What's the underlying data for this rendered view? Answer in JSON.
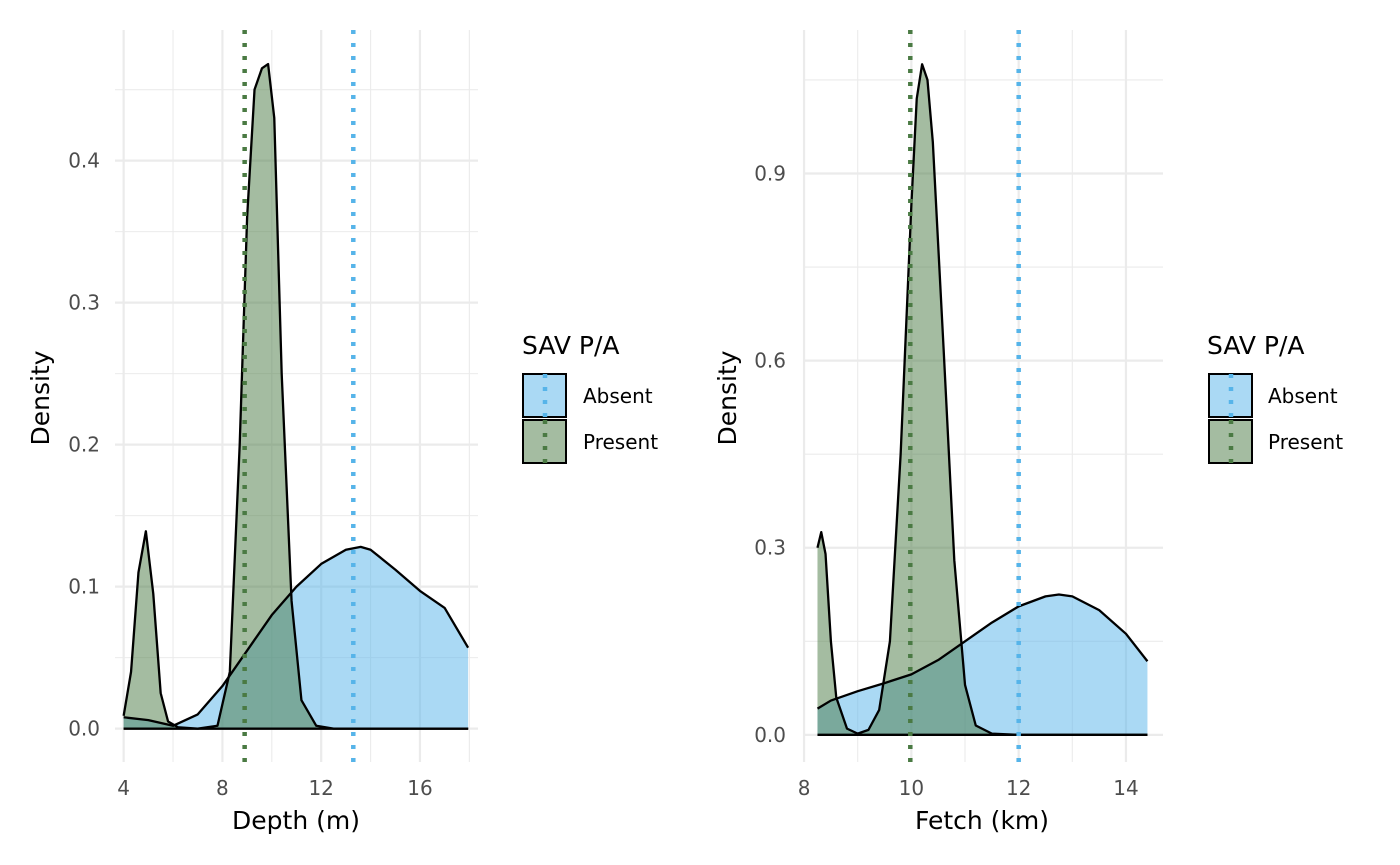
{
  "colors": {
    "absent": "#56B4E9",
    "present": "#4A7A43"
  },
  "chart_data": [
    {
      "type": "density",
      "xlabel": "Depth (m)",
      "ylabel": "Density",
      "xlim": [
        3.65,
        18.35
      ],
      "ylim": [
        -0.0235,
        0.492
      ],
      "xticks": [
        4,
        8,
        12,
        16
      ],
      "xtick_labels": [
        "4",
        "8",
        "12",
        "16"
      ],
      "xminor": [
        6,
        10,
        14,
        18
      ],
      "yticks": [
        0.0,
        0.1,
        0.2,
        0.3,
        0.4
      ],
      "ytick_labels": [
        "0.0",
        "0.1",
        "0.2",
        "0.3",
        "0.4"
      ],
      "yminor": [
        0.05,
        0.15,
        0.25,
        0.35,
        0.45
      ],
      "grid": true,
      "legend": {
        "title": "SAV P/A",
        "position": "right",
        "entries": [
          "Absent",
          "Present"
        ]
      },
      "series": [
        {
          "name": "Absent",
          "x": [
            4.0,
            5.0,
            6.0,
            7.0,
            8.0,
            9.0,
            10.0,
            11.0,
            12.0,
            13.0,
            13.6,
            14.0,
            15.0,
            16.0,
            17.0,
            17.95
          ],
          "y": [
            0.008,
            0.006,
            0.002,
            0.01,
            0.03,
            0.055,
            0.08,
            0.1,
            0.116,
            0.126,
            0.128,
            0.126,
            0.112,
            0.097,
            0.085,
            0.057
          ],
          "mean": 13.3
        },
        {
          "name": "Present",
          "x": [
            4.0,
            4.3,
            4.6,
            4.9,
            5.2,
            5.5,
            5.8,
            6.2,
            7.0,
            7.8,
            8.3,
            8.7,
            9.0,
            9.3,
            9.6,
            9.85,
            10.1,
            10.4,
            10.8,
            11.2,
            11.8,
            12.5,
            14.0,
            16.0,
            17.95
          ],
          "y": [
            0.009,
            0.04,
            0.11,
            0.139,
            0.095,
            0.025,
            0.005,
            0.001,
            0.0,
            0.002,
            0.04,
            0.2,
            0.36,
            0.45,
            0.465,
            0.468,
            0.43,
            0.25,
            0.09,
            0.02,
            0.002,
            0.0,
            0.0,
            0.0,
            0.0
          ],
          "mean": 8.9
        }
      ]
    },
    {
      "type": "density",
      "xlabel": "Fetch (km)",
      "ylabel": "Density",
      "xlim": [
        7.98,
        14.69
      ],
      "ylim": [
        -0.0435,
        1.13
      ],
      "xticks": [
        8,
        10,
        12,
        14
      ],
      "xtick_labels": [
        "8",
        "10",
        "12",
        "14"
      ],
      "xminor": [
        9,
        11,
        13
      ],
      "yticks": [
        0.0,
        0.3,
        0.6,
        0.9
      ],
      "ytick_labels": [
        "0.0",
        "0.3",
        "0.6",
        "0.9"
      ],
      "yminor": [
        0.15,
        0.45,
        0.75,
        1.05
      ],
      "grid": true,
      "legend": {
        "title": "SAV P/A",
        "position": "right",
        "entries": [
          "Absent",
          "Present"
        ]
      },
      "series": [
        {
          "name": "Absent",
          "x": [
            8.25,
            8.5,
            9.0,
            9.5,
            10.0,
            10.5,
            11.0,
            11.5,
            12.0,
            12.5,
            12.75,
            13.0,
            13.5,
            14.0,
            14.4
          ],
          "y": [
            0.042,
            0.055,
            0.07,
            0.083,
            0.097,
            0.12,
            0.15,
            0.18,
            0.206,
            0.222,
            0.225,
            0.222,
            0.2,
            0.162,
            0.118
          ],
          "mean": 12.0
        },
        {
          "name": "Present",
          "x": [
            8.25,
            8.32,
            8.4,
            8.5,
            8.6,
            8.8,
            9.0,
            9.2,
            9.4,
            9.6,
            9.8,
            10.0,
            10.1,
            10.2,
            10.3,
            10.4,
            10.6,
            10.8,
            11.0,
            11.2,
            11.5,
            12.0,
            13.0,
            14.4
          ],
          "y": [
            0.3,
            0.325,
            0.29,
            0.15,
            0.06,
            0.01,
            0.002,
            0.008,
            0.04,
            0.15,
            0.45,
            0.85,
            1.02,
            1.075,
            1.05,
            0.95,
            0.62,
            0.28,
            0.08,
            0.015,
            0.002,
            0.0,
            0.0,
            0.0
          ],
          "mean": 9.98
        }
      ]
    }
  ]
}
